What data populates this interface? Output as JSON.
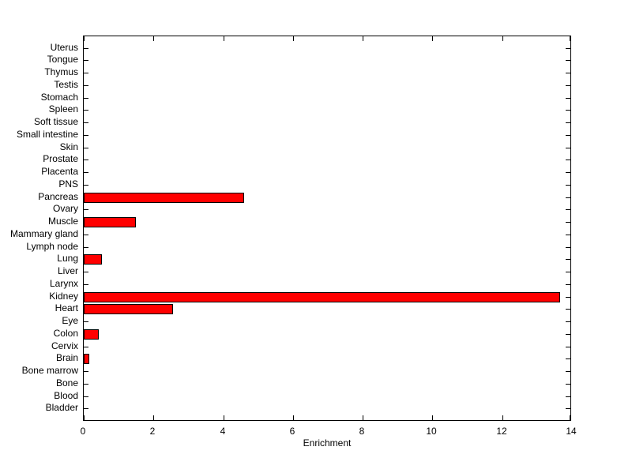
{
  "chart_data": {
    "type": "bar",
    "orientation": "horizontal",
    "title": "",
    "xlabel": "Enrichment",
    "ylabel": "",
    "xlim": [
      0,
      14
    ],
    "xticks": [
      0,
      2,
      4,
      6,
      8,
      10,
      12,
      14
    ],
    "grid": false,
    "legend": false,
    "categories_top_to_bottom": [
      "Uterus",
      "Tongue",
      "Thymus",
      "Testis",
      "Stomach",
      "Spleen",
      "Soft tissue",
      "Small intestine",
      "Skin",
      "Prostate",
      "Placenta",
      "PNS",
      "Pancreas",
      "Ovary",
      "Muscle",
      "Mammary gland",
      "Lymph node",
      "Lung",
      "Liver",
      "Larynx",
      "Kidney",
      "Heart",
      "Eye",
      "Colon",
      "Cervix",
      "Brain",
      "Bone marrow",
      "Bone",
      "Blood",
      "Bladder"
    ],
    "values": [
      0,
      0,
      0,
      0,
      0,
      0,
      0,
      0,
      0,
      0,
      0,
      0,
      4.6,
      0,
      1.5,
      0,
      0,
      0.52,
      0,
      0,
      13.65,
      2.55,
      0,
      0.42,
      0,
      0.16,
      0,
      0,
      0,
      0
    ],
    "colors": {
      "bar_fill": "#FF0000",
      "bar_edge": "#000000",
      "axis": "#000000",
      "text": "#000000",
      "background": "#FFFFFF"
    }
  }
}
